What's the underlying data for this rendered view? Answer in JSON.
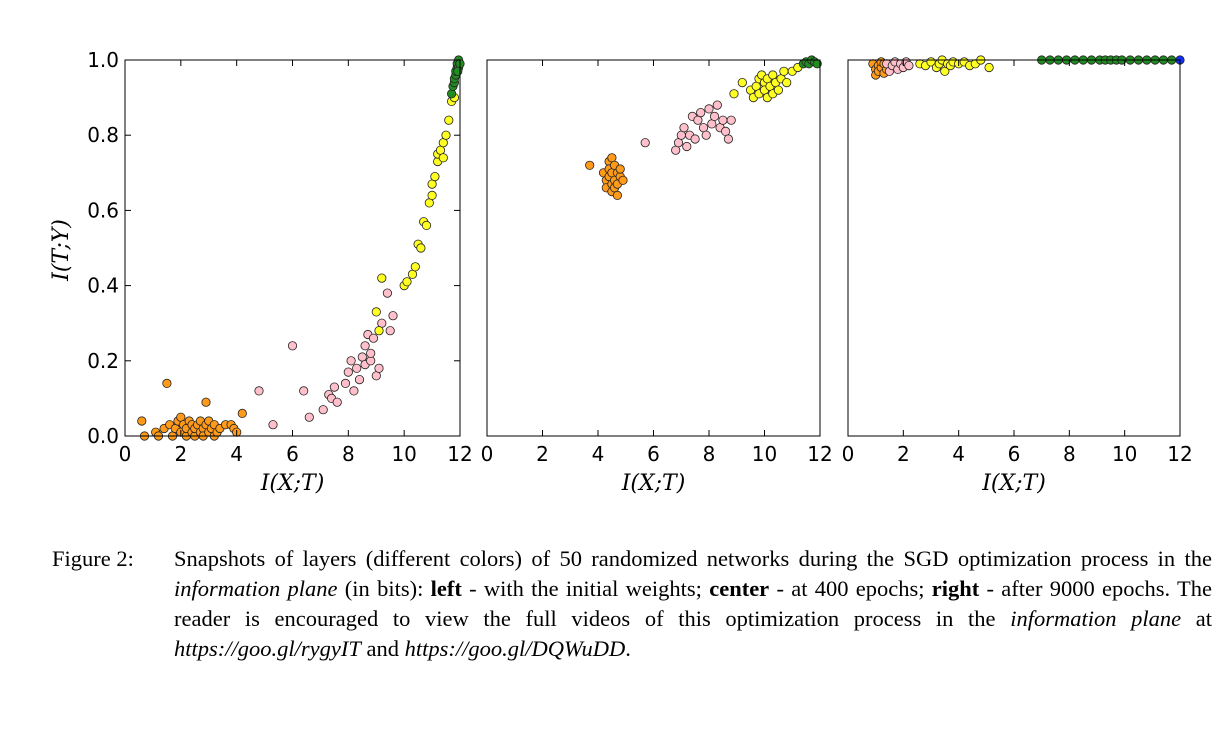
{
  "chart_data": [
    {
      "type": "scatter",
      "panel": "left",
      "xlabel": "I(X;T)",
      "ylabel": "I(T;Y)",
      "xlim": [
        0,
        12
      ],
      "ylim": [
        0,
        1.0
      ],
      "xticks": [
        "0",
        "2",
        "4",
        "6",
        "8",
        "10",
        "12"
      ],
      "yticks": [
        "0.0",
        "0.2",
        "0.4",
        "0.6",
        "0.8",
        "1.0"
      ],
      "grid": false,
      "series": [
        {
          "color": "#ff9a1a",
          "points": [
            [
              0.6,
              0.04
            ],
            [
              0.7,
              0.0
            ],
            [
              1.1,
              0.01
            ],
            [
              1.2,
              0.0
            ],
            [
              1.4,
              0.02
            ],
            [
              1.5,
              0.14
            ],
            [
              1.6,
              0.03
            ],
            [
              1.7,
              0.0
            ],
            [
              1.8,
              0.02
            ],
            [
              1.9,
              0.04
            ],
            [
              2.0,
              0.01
            ],
            [
              2.0,
              0.05
            ],
            [
              2.1,
              0.03
            ],
            [
              2.2,
              0.0
            ],
            [
              2.2,
              0.02
            ],
            [
              2.3,
              0.04
            ],
            [
              2.4,
              0.01
            ],
            [
              2.4,
              0.03
            ],
            [
              2.5,
              0.0
            ],
            [
              2.5,
              0.02
            ],
            [
              2.6,
              0.03
            ],
            [
              2.7,
              0.01
            ],
            [
              2.7,
              0.04
            ],
            [
              2.8,
              0.02
            ],
            [
              2.8,
              0.0
            ],
            [
              2.9,
              0.09
            ],
            [
              2.9,
              0.03
            ],
            [
              3.0,
              0.01
            ],
            [
              3.0,
              0.04
            ],
            [
              3.1,
              0.02
            ],
            [
              3.2,
              0.0
            ],
            [
              3.2,
              0.03
            ],
            [
              3.3,
              0.01
            ],
            [
              3.4,
              0.02
            ],
            [
              3.6,
              0.03
            ],
            [
              3.8,
              0.03
            ],
            [
              3.9,
              0.02
            ],
            [
              4.0,
              0.01
            ],
            [
              4.2,
              0.06
            ]
          ]
        },
        {
          "color": "#ffc0cb",
          "points": [
            [
              4.8,
              0.12
            ],
            [
              5.3,
              0.03
            ],
            [
              6.0,
              0.24
            ],
            [
              6.4,
              0.12
            ],
            [
              6.6,
              0.05
            ],
            [
              7.1,
              0.07
            ],
            [
              7.3,
              0.11
            ],
            [
              7.4,
              0.1
            ],
            [
              7.5,
              0.13
            ],
            [
              7.6,
              0.09
            ],
            [
              7.9,
              0.14
            ],
            [
              8.0,
              0.17
            ],
            [
              8.1,
              0.2
            ],
            [
              8.2,
              0.12
            ],
            [
              8.3,
              0.18
            ],
            [
              8.4,
              0.15
            ],
            [
              8.5,
              0.21
            ],
            [
              8.6,
              0.24
            ],
            [
              8.6,
              0.19
            ],
            [
              8.7,
              0.27
            ],
            [
              8.8,
              0.2
            ],
            [
              8.8,
              0.22
            ],
            [
              8.9,
              0.26
            ],
            [
              9.0,
              0.16
            ],
            [
              9.1,
              0.18
            ],
            [
              9.2,
              0.3
            ],
            [
              9.4,
              0.38
            ],
            [
              9.5,
              0.28
            ],
            [
              9.6,
              0.32
            ]
          ]
        },
        {
          "color": "#ffff22",
          "points": [
            [
              9.0,
              0.33
            ],
            [
              9.1,
              0.28
            ],
            [
              9.2,
              0.42
            ],
            [
              10.0,
              0.4
            ],
            [
              10.1,
              0.41
            ],
            [
              10.3,
              0.43
            ],
            [
              10.4,
              0.45
            ],
            [
              10.5,
              0.51
            ],
            [
              10.6,
              0.5
            ],
            [
              10.7,
              0.57
            ],
            [
              10.8,
              0.56
            ],
            [
              10.9,
              0.62
            ],
            [
              11.0,
              0.64
            ],
            [
              11.0,
              0.67
            ],
            [
              11.1,
              0.69
            ],
            [
              11.2,
              0.73
            ],
            [
              11.2,
              0.75
            ],
            [
              11.3,
              0.76
            ],
            [
              11.4,
              0.78
            ],
            [
              11.4,
              0.74
            ],
            [
              11.5,
              0.8
            ],
            [
              11.6,
              0.84
            ],
            [
              11.7,
              0.89
            ],
            [
              11.8,
              0.9
            ]
          ]
        },
        {
          "color": "#228b22",
          "points": [
            [
              11.7,
              0.91
            ],
            [
              11.75,
              0.93
            ],
            [
              11.8,
              0.94
            ],
            [
              11.8,
              0.95
            ],
            [
              11.85,
              0.96
            ],
            [
              11.85,
              0.97
            ],
            [
              11.9,
              0.98
            ],
            [
              11.9,
              0.99
            ],
            [
              11.95,
              0.98
            ],
            [
              11.95,
              1.0
            ],
            [
              12.0,
              0.99
            ],
            [
              11.92,
              0.97
            ]
          ]
        }
      ]
    },
    {
      "type": "scatter",
      "panel": "center",
      "xlabel": "I(X;T)",
      "ylabel": "",
      "xlim": [
        0,
        12
      ],
      "ylim": [
        0,
        1.0
      ],
      "xticks": [
        "0",
        "2",
        "4",
        "6",
        "8",
        "10",
        "12"
      ],
      "grid": false,
      "series": [
        {
          "color": "#ff9a1a",
          "points": [
            [
              3.7,
              0.72
            ],
            [
              4.2,
              0.7
            ],
            [
              4.3,
              0.68
            ],
            [
              4.3,
              0.66
            ],
            [
              4.4,
              0.73
            ],
            [
              4.4,
              0.71
            ],
            [
              4.4,
              0.69
            ],
            [
              4.5,
              0.67
            ],
            [
              4.5,
              0.65
            ],
            [
              4.5,
              0.7
            ],
            [
              4.5,
              0.74
            ],
            [
              4.6,
              0.68
            ],
            [
              4.6,
              0.72
            ],
            [
              4.6,
              0.66
            ],
            [
              4.7,
              0.7
            ],
            [
              4.7,
              0.67
            ],
            [
              4.7,
              0.64
            ],
            [
              4.8,
              0.69
            ],
            [
              4.8,
              0.71
            ],
            [
              4.9,
              0.68
            ]
          ]
        },
        {
          "color": "#ffc0cb",
          "points": [
            [
              5.7,
              0.78
            ],
            [
              6.8,
              0.76
            ],
            [
              6.9,
              0.78
            ],
            [
              7.0,
              0.8
            ],
            [
              7.1,
              0.82
            ],
            [
              7.2,
              0.77
            ],
            [
              7.3,
              0.8
            ],
            [
              7.4,
              0.85
            ],
            [
              7.5,
              0.79
            ],
            [
              7.6,
              0.84
            ],
            [
              7.7,
              0.86
            ],
            [
              7.8,
              0.82
            ],
            [
              7.9,
              0.8
            ],
            [
              8.0,
              0.87
            ],
            [
              8.1,
              0.83
            ],
            [
              8.2,
              0.85
            ],
            [
              8.3,
              0.88
            ],
            [
              8.4,
              0.82
            ],
            [
              8.5,
              0.84
            ],
            [
              8.6,
              0.81
            ],
            [
              8.7,
              0.79
            ],
            [
              8.8,
              0.84
            ]
          ]
        },
        {
          "color": "#ffff22",
          "points": [
            [
              8.9,
              0.91
            ],
            [
              9.2,
              0.94
            ],
            [
              9.5,
              0.92
            ],
            [
              9.6,
              0.9
            ],
            [
              9.7,
              0.93
            ],
            [
              9.8,
              0.95
            ],
            [
              9.8,
              0.91
            ],
            [
              9.9,
              0.96
            ],
            [
              10.0,
              0.94
            ],
            [
              10.0,
              0.92
            ],
            [
              10.1,
              0.9
            ],
            [
              10.1,
              0.95
            ],
            [
              10.2,
              0.93
            ],
            [
              10.3,
              0.96
            ],
            [
              10.3,
              0.91
            ],
            [
              10.4,
              0.94
            ],
            [
              10.5,
              0.92
            ],
            [
              10.6,
              0.95
            ],
            [
              10.7,
              0.97
            ],
            [
              10.8,
              0.94
            ],
            [
              11.0,
              0.97
            ],
            [
              11.2,
              0.98
            ]
          ]
        },
        {
          "color": "#228b22",
          "points": [
            [
              11.4,
              0.99
            ],
            [
              11.5,
              0.995
            ],
            [
              11.6,
              0.99
            ],
            [
              11.7,
              1.0
            ],
            [
              11.8,
              0.995
            ],
            [
              11.9,
              0.99
            ]
          ]
        }
      ]
    },
    {
      "type": "scatter",
      "panel": "right",
      "xlabel": "I(X;T)",
      "ylabel": "",
      "xlim": [
        0,
        12
      ],
      "ylim": [
        0,
        1.0
      ],
      "xticks": [
        "0",
        "2",
        "4",
        "6",
        "8",
        "10",
        "12"
      ],
      "grid": false,
      "series": [
        {
          "color": "#ff9a1a",
          "points": [
            [
              0.9,
              0.99
            ],
            [
              1.0,
              0.975
            ],
            [
              1.0,
              0.96
            ],
            [
              1.1,
              0.985
            ],
            [
              1.1,
              0.97
            ],
            [
              1.2,
              0.98
            ],
            [
              1.2,
              0.995
            ],
            [
              1.3,
              0.965
            ],
            [
              1.3,
              0.99
            ],
            [
              1.4,
              0.975
            ],
            [
              1.5,
              0.985
            ]
          ]
        },
        {
          "color": "#ffc0cb",
          "points": [
            [
              1.4,
              0.99
            ],
            [
              1.5,
              0.97
            ],
            [
              1.6,
              0.985
            ],
            [
              1.7,
              0.995
            ],
            [
              1.8,
              0.975
            ],
            [
              1.9,
              0.99
            ],
            [
              2.0,
              0.98
            ],
            [
              2.1,
              0.995
            ],
            [
              2.2,
              0.985
            ]
          ]
        },
        {
          "color": "#ffff22",
          "points": [
            [
              2.6,
              0.99
            ],
            [
              2.8,
              0.985
            ],
            [
              3.0,
              0.995
            ],
            [
              3.2,
              0.98
            ],
            [
              3.3,
              0.99
            ],
            [
              3.4,
              1.0
            ],
            [
              3.5,
              0.97
            ],
            [
              3.6,
              0.99
            ],
            [
              3.7,
              0.985
            ],
            [
              3.8,
              0.995
            ],
            [
              4.0,
              0.99
            ],
            [
              4.2,
              0.995
            ],
            [
              4.4,
              0.985
            ],
            [
              4.6,
              0.99
            ],
            [
              4.8,
              1.0
            ],
            [
              5.1,
              0.98
            ]
          ]
        },
        {
          "color": "#228b22",
          "points": [
            [
              7.0,
              1.0
            ],
            [
              7.3,
              1.0
            ],
            [
              7.6,
              1.0
            ],
            [
              7.9,
              1.0
            ],
            [
              8.2,
              1.0
            ],
            [
              8.5,
              1.0
            ],
            [
              8.8,
              1.0
            ],
            [
              9.1,
              1.0
            ],
            [
              9.3,
              1.0
            ],
            [
              9.5,
              1.0
            ],
            [
              9.7,
              1.0
            ],
            [
              9.9,
              1.0
            ],
            [
              10.2,
              1.0
            ],
            [
              10.5,
              1.0
            ],
            [
              10.8,
              1.0
            ],
            [
              11.1,
              1.0
            ],
            [
              11.4,
              1.0
            ],
            [
              11.7,
              1.0
            ]
          ]
        },
        {
          "color": "#1030ff",
          "points": [
            [
              12.0,
              1.0
            ]
          ]
        }
      ]
    }
  ],
  "caption": {
    "label": "Figure 2:",
    "t1": " Snapshots of layers (different colors) of 50 randomized networks during the SGD optimization process in the ",
    "t1_em": "information plane",
    "t2": " (in bits): ",
    "left_b": "left",
    "t3": " - with the initial weights; ",
    "center_b": "center",
    "t4": " - at 400 epochs; ",
    "right_b": "right",
    "t5": " - after 9000 epochs. The reader is encouraged to view the full videos of this optimization process in the ",
    "t5_em": "information plane",
    "t6": " at ",
    "url1": "https://goo.gl/rygyIT",
    "t7": " and ",
    "url2": "https://goo.gl/DQWuDD",
    "t8": "."
  }
}
